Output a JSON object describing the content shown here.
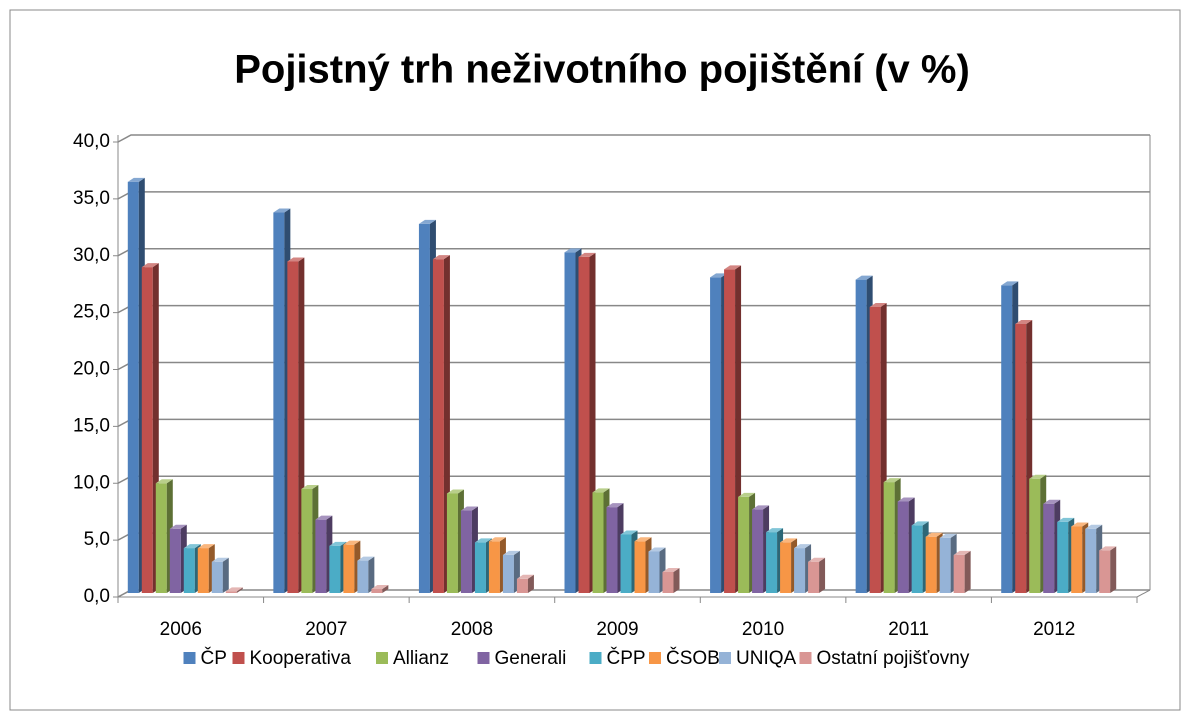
{
  "chart_data": {
    "type": "bar3d",
    "title": "Pojistný trh neživotního pojištění (v %)",
    "categories": [
      "2006",
      "2007",
      "2008",
      "2009",
      "2010",
      "2011",
      "2012"
    ],
    "series": [
      {
        "name": "ČP",
        "color": "#4f81bd",
        "values": [
          36.5,
          33.8,
          32.8,
          30.3,
          28.1,
          27.9,
          27.4
        ]
      },
      {
        "name": "Kooperativa",
        "color": "#c0504d",
        "values": [
          29.0,
          29.5,
          29.7,
          29.9,
          28.8,
          25.5,
          24.0
        ]
      },
      {
        "name": "Allianz",
        "color": "#9bbb59",
        "values": [
          10.0,
          9.5,
          9.1,
          9.2,
          8.8,
          10.1,
          10.4
        ]
      },
      {
        "name": "Generali",
        "color": "#8064a2",
        "values": [
          6.0,
          6.8,
          7.6,
          7.9,
          7.7,
          8.4,
          8.2
        ]
      },
      {
        "name": "ČPP",
        "color": "#4bacc6",
        "values": [
          4.3,
          4.5,
          4.8,
          5.5,
          5.7,
          6.3,
          6.6
        ]
      },
      {
        "name": "ČSOB",
        "color": "#f79646",
        "values": [
          4.3,
          4.6,
          4.9,
          4.9,
          4.8,
          5.3,
          6.2
        ]
      },
      {
        "name": "UNIQA",
        "color": "#95b3d7",
        "values": [
          3.1,
          3.2,
          3.7,
          4.0,
          4.3,
          5.2,
          6.0
        ]
      },
      {
        "name": "Ostatní pojišťovny",
        "color": "#d99694",
        "values": [
          0.5,
          0.7,
          1.6,
          2.2,
          3.1,
          3.7,
          4.1
        ]
      }
    ],
    "ylim": [
      0,
      40
    ],
    "yticks": [
      {
        "value": 0,
        "label": "0,0"
      },
      {
        "value": 5,
        "label": "5,0"
      },
      {
        "value": 10,
        "label": "10,0"
      },
      {
        "value": 15,
        "label": "15,0"
      },
      {
        "value": 20,
        "label": "20,0"
      },
      {
        "value": 25,
        "label": "25,0"
      },
      {
        "value": 30,
        "label": "30,0"
      },
      {
        "value": 35,
        "label": "35,0"
      },
      {
        "value": 40,
        "label": "40,0"
      }
    ],
    "grid": true,
    "legend": "bottom"
  }
}
